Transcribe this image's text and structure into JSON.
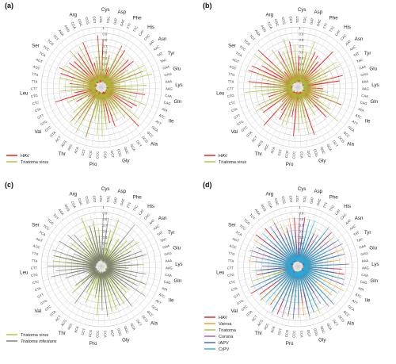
{
  "chart_data": [
    {
      "panel": "(a)",
      "type": "radar",
      "legend": [
        {
          "name": "HAV",
          "color": "#e31a1c"
        },
        {
          "name": "Triatoma virus",
          "color": "#a6c339"
        }
      ],
      "ticks": [
        "0.1",
        "0.2",
        "0.3",
        "0.4",
        "0.5",
        "0.6",
        "0.7",
        "0.8",
        "0.9",
        "1"
      ]
    },
    {
      "panel": "(b)",
      "type": "radar",
      "legend": [
        {
          "name": "HAV",
          "color": "#e31a1c"
        },
        {
          "name": "Triatoma virus",
          "color": "#a6c339"
        }
      ],
      "ticks": [
        "0.1",
        "0.2",
        "0.3",
        "0.4",
        "0.5",
        "0.6",
        "0.7",
        "0.8",
        "0.9",
        "1"
      ]
    },
    {
      "panel": "(c)",
      "type": "radar",
      "legend": [
        {
          "name": "Triatoma virus",
          "color": "#a6c339"
        },
        {
          "name": "Triatoma infestans",
          "color": "#7a7a7a"
        }
      ],
      "ticks": [
        "0.1",
        "0.2",
        "0.3",
        "0.4",
        "0.5",
        "0.6",
        "0.7",
        "0.8",
        "0.9",
        "1"
      ]
    },
    {
      "panel": "(d)",
      "type": "radar",
      "legend": [
        {
          "name": "HAV",
          "color": "#e31a1c"
        },
        {
          "name": "Varroa",
          "color": "#f39c12"
        },
        {
          "name": "Triatoma",
          "color": "#a6c339"
        },
        {
          "name": "Corona",
          "color": "#9b59b6"
        },
        {
          "name": "IAPV",
          "color": "#3b5fc0"
        },
        {
          "name": "CrPV",
          "color": "#2ab0d6"
        }
      ],
      "ticks": [
        "0.1",
        "0.2",
        "0.3",
        "0.4",
        "0.5",
        "0.6",
        "0.7",
        "0.8",
        "0.9",
        "1"
      ]
    }
  ],
  "codons": [
    "TGT",
    "TGC",
    "GAT",
    "GAC",
    "TTT",
    "TTC",
    "CAT",
    "CAC",
    "AAT",
    "AAC",
    "TAT",
    "TAC",
    "GAA",
    "GAG",
    "AAA",
    "AAG",
    "CAA",
    "CAG",
    "ATA",
    "ATC",
    "ATT",
    "GCA",
    "GCC",
    "GCG",
    "GCT",
    "GGA",
    "GGC",
    "GGG",
    "GGT",
    "CCA",
    "CCC",
    "CCG",
    "CCT",
    "ACA",
    "ACC",
    "ACG",
    "ACT",
    "GTA",
    "GTC",
    "GTG",
    "GTT",
    "CTA",
    "CTC",
    "CTG",
    "CTT",
    "TTA",
    "TTG",
    "AGC",
    "AGT",
    "TCA",
    "TCC",
    "TCG",
    "TCT",
    "AGA",
    "AGG",
    "CGA",
    "CGC",
    "CGG",
    "CGT"
  ],
  "amino_acids": [
    {
      "name": "Cys",
      "start": 0,
      "count": 2
    },
    {
      "name": "Asp",
      "start": 2,
      "count": 2
    },
    {
      "name": "Phe",
      "start": 4,
      "count": 2
    },
    {
      "name": "His",
      "start": 6,
      "count": 2
    },
    {
      "name": "Asn",
      "start": 8,
      "count": 2
    },
    {
      "name": "Tyr",
      "start": 10,
      "count": 2
    },
    {
      "name": "Glu",
      "start": 12,
      "count": 2
    },
    {
      "name": "Lys",
      "start": 14,
      "count": 2
    },
    {
      "name": "Gln",
      "start": 16,
      "count": 2
    },
    {
      "name": "Ile",
      "start": 18,
      "count": 3
    },
    {
      "name": "Ala",
      "start": 21,
      "count": 4
    },
    {
      "name": "Gly",
      "start": 25,
      "count": 4
    },
    {
      "name": "Pro",
      "start": 29,
      "count": 4
    },
    {
      "name": "Thr",
      "start": 33,
      "count": 4
    },
    {
      "name": "Val",
      "start": 37,
      "count": 4
    },
    {
      "name": "Leu",
      "start": 41,
      "count": 6
    },
    {
      "name": "Ser",
      "start": 47,
      "count": 6
    },
    {
      "name": "Arg",
      "start": 53,
      "count": 6
    }
  ]
}
